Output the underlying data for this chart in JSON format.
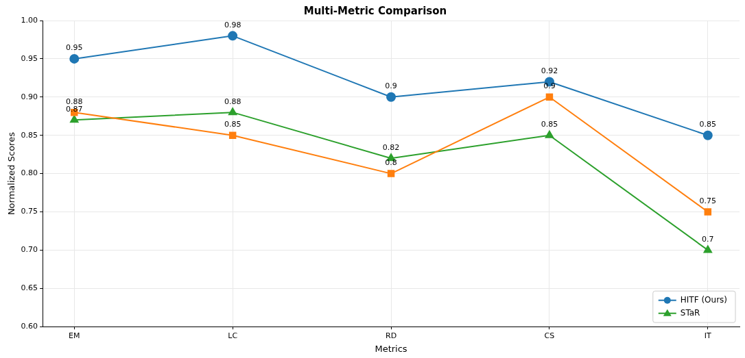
{
  "chart_data": {
    "type": "line",
    "title": "Multi-Metric Comparison",
    "xlabel": "Metrics",
    "ylabel": "Normalized Scores",
    "categories": [
      "EM",
      "LC",
      "RD",
      "CS",
      "IT"
    ],
    "series": [
      {
        "name": "HITF (Ours)",
        "color": "#1f77b4",
        "marker": "circle",
        "values": [
          0.95,
          0.98,
          0.9,
          0.92,
          0.85
        ]
      },
      {
        "color": "#ff7f0e",
        "marker": "square",
        "values": [
          0.88,
          0.85,
          0.8,
          0.9,
          0.75
        ]
      },
      {
        "name": "STaR",
        "color": "#2ca02c",
        "marker": "triangle",
        "values": [
          0.87,
          0.88,
          0.82,
          0.85,
          0.7
        ]
      }
    ],
    "ylim": [
      0.6,
      1.0
    ],
    "yticks": [
      {
        "value": 0.6,
        "label": "0.60"
      },
      {
        "value": 0.65,
        "label": "0.65"
      },
      {
        "value": 0.7,
        "label": "0.70"
      },
      {
        "value": 0.75,
        "label": "0.75"
      },
      {
        "value": 0.8,
        "label": "0.80"
      },
      {
        "value": 0.85,
        "label": "0.85"
      },
      {
        "value": 0.9,
        "label": "0.90"
      },
      {
        "value": 0.95,
        "label": "0.95"
      },
      {
        "value": 1.0,
        "label": "1.00"
      }
    ],
    "grid": true,
    "legend": "bottom right",
    "data_labels": true,
    "line_style": "solid"
  }
}
